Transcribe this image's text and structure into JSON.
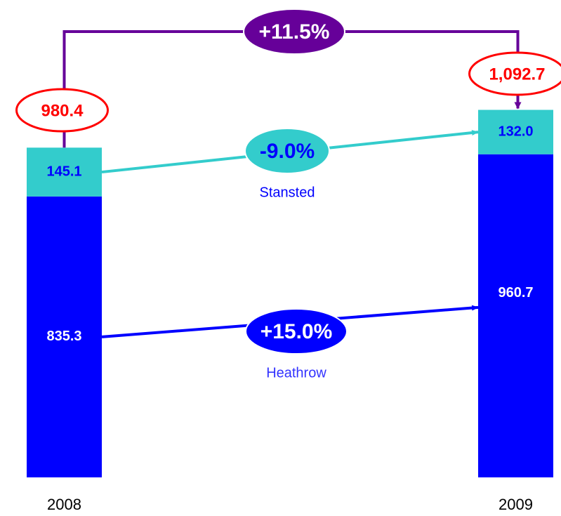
{
  "chart_data": {
    "type": "bar",
    "stacked": true,
    "categories": [
      "2008",
      "2009"
    ],
    "series": [
      {
        "name": "Heathrow",
        "color": "#0000ff",
        "values": [
          835.3,
          960.7
        ],
        "value_labels": [
          "835.3",
          "960.7"
        ],
        "change": {
          "value": 15.0,
          "label": "+15.0%"
        }
      },
      {
        "name": "Stansted",
        "color": "#33cccc",
        "values": [
          145.1,
          132.0
        ],
        "value_labels": [
          "145.1",
          "132.0"
        ],
        "change": {
          "value": -9.0,
          "label": "-9.0%"
        }
      }
    ],
    "totals": [
      {
        "value": 980.4,
        "label": "980.4"
      },
      {
        "value": 1092.7,
        "label": "1,092.7"
      }
    ],
    "total_change": {
      "value": 11.5,
      "label": "+11.5%"
    },
    "ylim": [
      0,
      1100
    ]
  }
}
